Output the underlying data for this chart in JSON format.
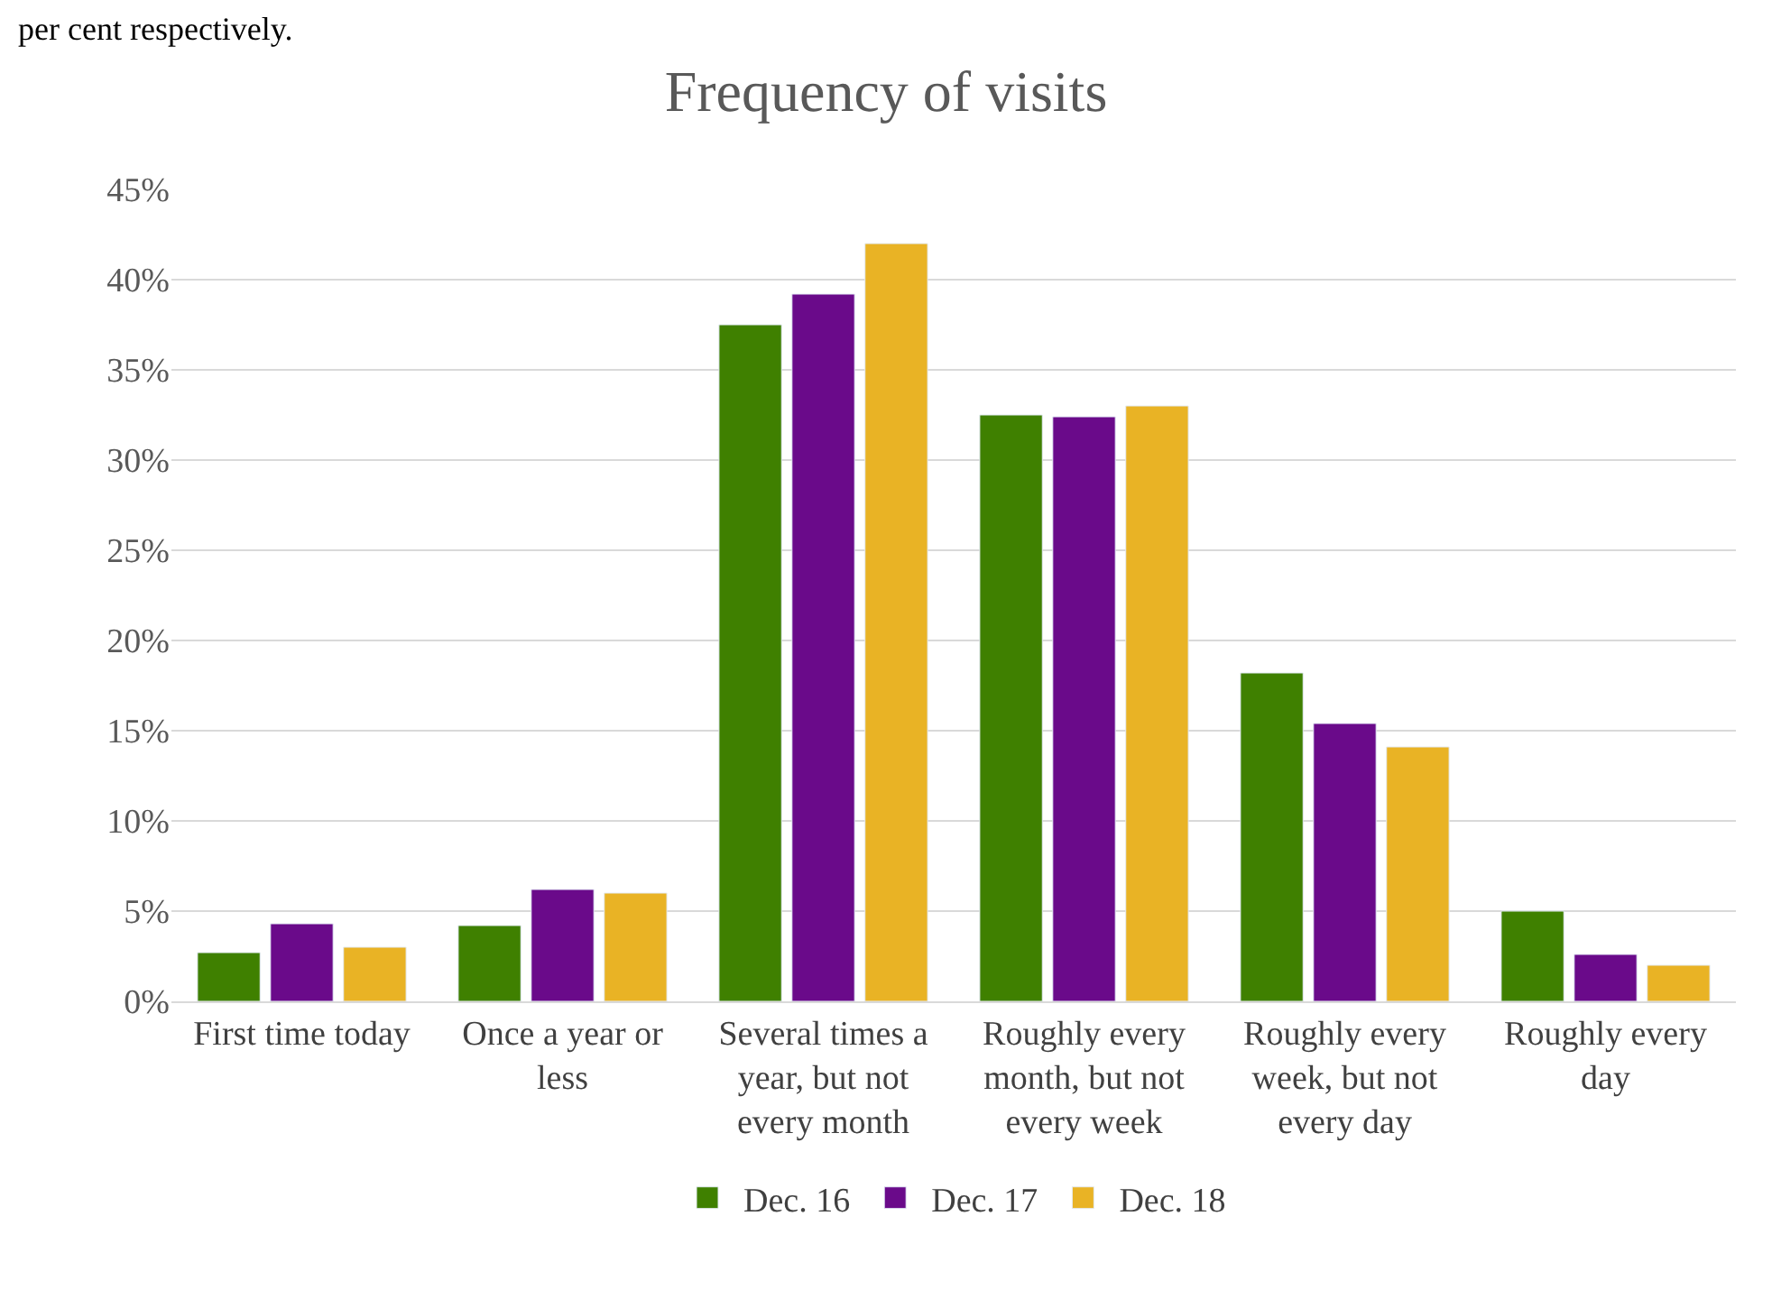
{
  "chart_data": {
    "type": "bar",
    "title": "Frequency of visits",
    "annotations": [
      "per cent respectively."
    ],
    "categories": [
      "First time today",
      "Once a year or less",
      "Several times a year, but not every month",
      "Roughly every month, but not every week",
      "Roughly every week, but not every day",
      "Roughly every day"
    ],
    "series": [
      {
        "name": "Dec. 16",
        "color": "#3f8000",
        "values": [
          2.7,
          4.2,
          37.5,
          32.5,
          18.2,
          5.0
        ]
      },
      {
        "name": "Dec. 17",
        "color": "#6a0a8a",
        "values": [
          4.3,
          6.2,
          39.2,
          32.4,
          15.4,
          2.6
        ]
      },
      {
        "name": "Dec. 18",
        "color": "#e9b325",
        "values": [
          3.0,
          6.0,
          42.0,
          33.0,
          14.1,
          2.0
        ]
      }
    ],
    "ylim": [
      0,
      45
    ],
    "yticks": [
      {
        "value": 0,
        "label": "0%"
      },
      {
        "value": 5,
        "label": "5%"
      },
      {
        "value": 10,
        "label": "10%"
      },
      {
        "value": 15,
        "label": "15%"
      },
      {
        "value": 20,
        "label": "20%"
      },
      {
        "value": 25,
        "label": "25%"
      },
      {
        "value": 30,
        "label": "30%"
      },
      {
        "value": 35,
        "label": "35%"
      },
      {
        "value": 40,
        "label": "40%"
      },
      {
        "value": 45,
        "label": "45%"
      }
    ],
    "grid": "y",
    "legend": "bottom"
  }
}
